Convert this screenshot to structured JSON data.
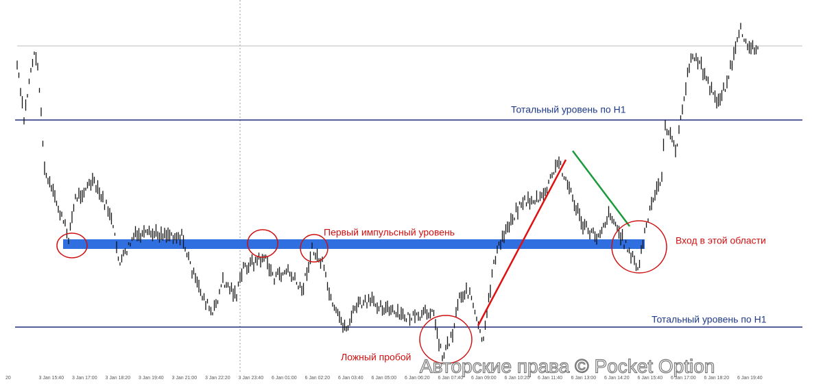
{
  "annotations": {
    "upper_level": "Тотальный уровень по H1",
    "lower_level": "Тотальный уровень по H1",
    "impulse_level": "Первый импульсный уровень",
    "entry": "Вход в этой области",
    "false_break": "Ложный пробой",
    "watermark": "Авторские права © Pocket Option"
  },
  "x_axis": {
    "labels": [
      "20",
      "3 Jan 15:40",
      "3 Jan 17:00",
      "3 Jan 18:20",
      "3 Jan 19:40",
      "3 Jan 21:00",
      "3 Jan 22:20",
      "3 Jan 23:40",
      "6 Jan 01:00",
      "6 Jan 02:20",
      "6 Jan 03:40",
      "6 Jan 05:00",
      "6 Jan 06:20",
      "6 Jan 07:40",
      "6 Jan 09:00",
      "6 Jan 10:20",
      "6 Jan 11:40",
      "6 Jan 13:00",
      "6 Jan 14:20",
      "6 Jan 15:40",
      "6 Jan 17:00",
      "6 Jan 18:20",
      "6 Jan 19:40"
    ]
  }
}
